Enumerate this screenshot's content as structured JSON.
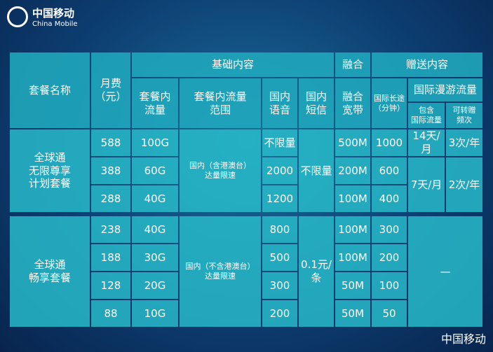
{
  "logo": {
    "name_cn": "中国移动",
    "name_en": "China Mobile"
  },
  "table": {
    "header": {
      "plan_name": "套餐名称",
      "monthly_fee": "月费\n（元）",
      "basic": "基础内容",
      "data": "套餐内\n流量",
      "data_scope": "套餐内流量\n范围",
      "voice": "国内\n语音",
      "sms": "国内\n短信",
      "fusion": "融合",
      "broadband": "融合\n宽带",
      "bonus": "赠送内容",
      "intl_call": "国际长途\n（分钟）",
      "roaming": "国际漫游流量",
      "roaming_included": "包含\n国际流量",
      "transfer": "可转赠\n频次"
    },
    "groups": [
      {
        "name": "全球通\n无限尊享\n计划套餐",
        "fees": [
          588,
          388,
          288
        ],
        "data": [
          "100G",
          "60G",
          "40G"
        ],
        "scope": "国内（含港澳台）\n达量限速",
        "voice": [
          "不限量",
          2000,
          1200
        ],
        "sms": "不限量",
        "broadband": [
          "500M",
          "200M",
          "100M"
        ],
        "intl_call": [
          1000,
          600,
          400
        ],
        "roaming": [
          {
            "included": "14天/月",
            "transfer": "3次/年"
          },
          {
            "included": "7天/月",
            "transfer": "2次/年"
          }
        ]
      },
      {
        "name": "全球通\n畅享套餐",
        "fees": [
          238,
          188,
          128,
          88
        ],
        "data": [
          "40G",
          "30G",
          "20G",
          "10G"
        ],
        "scope": "国内（不含港澳台）\n达量限速",
        "voice": [
          800,
          500,
          300,
          200
        ],
        "sms": "0.1元/\n条",
        "broadband": [
          "100M",
          "100M",
          "50M",
          "50M"
        ],
        "intl_call": [
          300,
          200,
          100,
          50
        ],
        "roaming": "—"
      }
    ]
  },
  "watermark": "中国移动"
}
